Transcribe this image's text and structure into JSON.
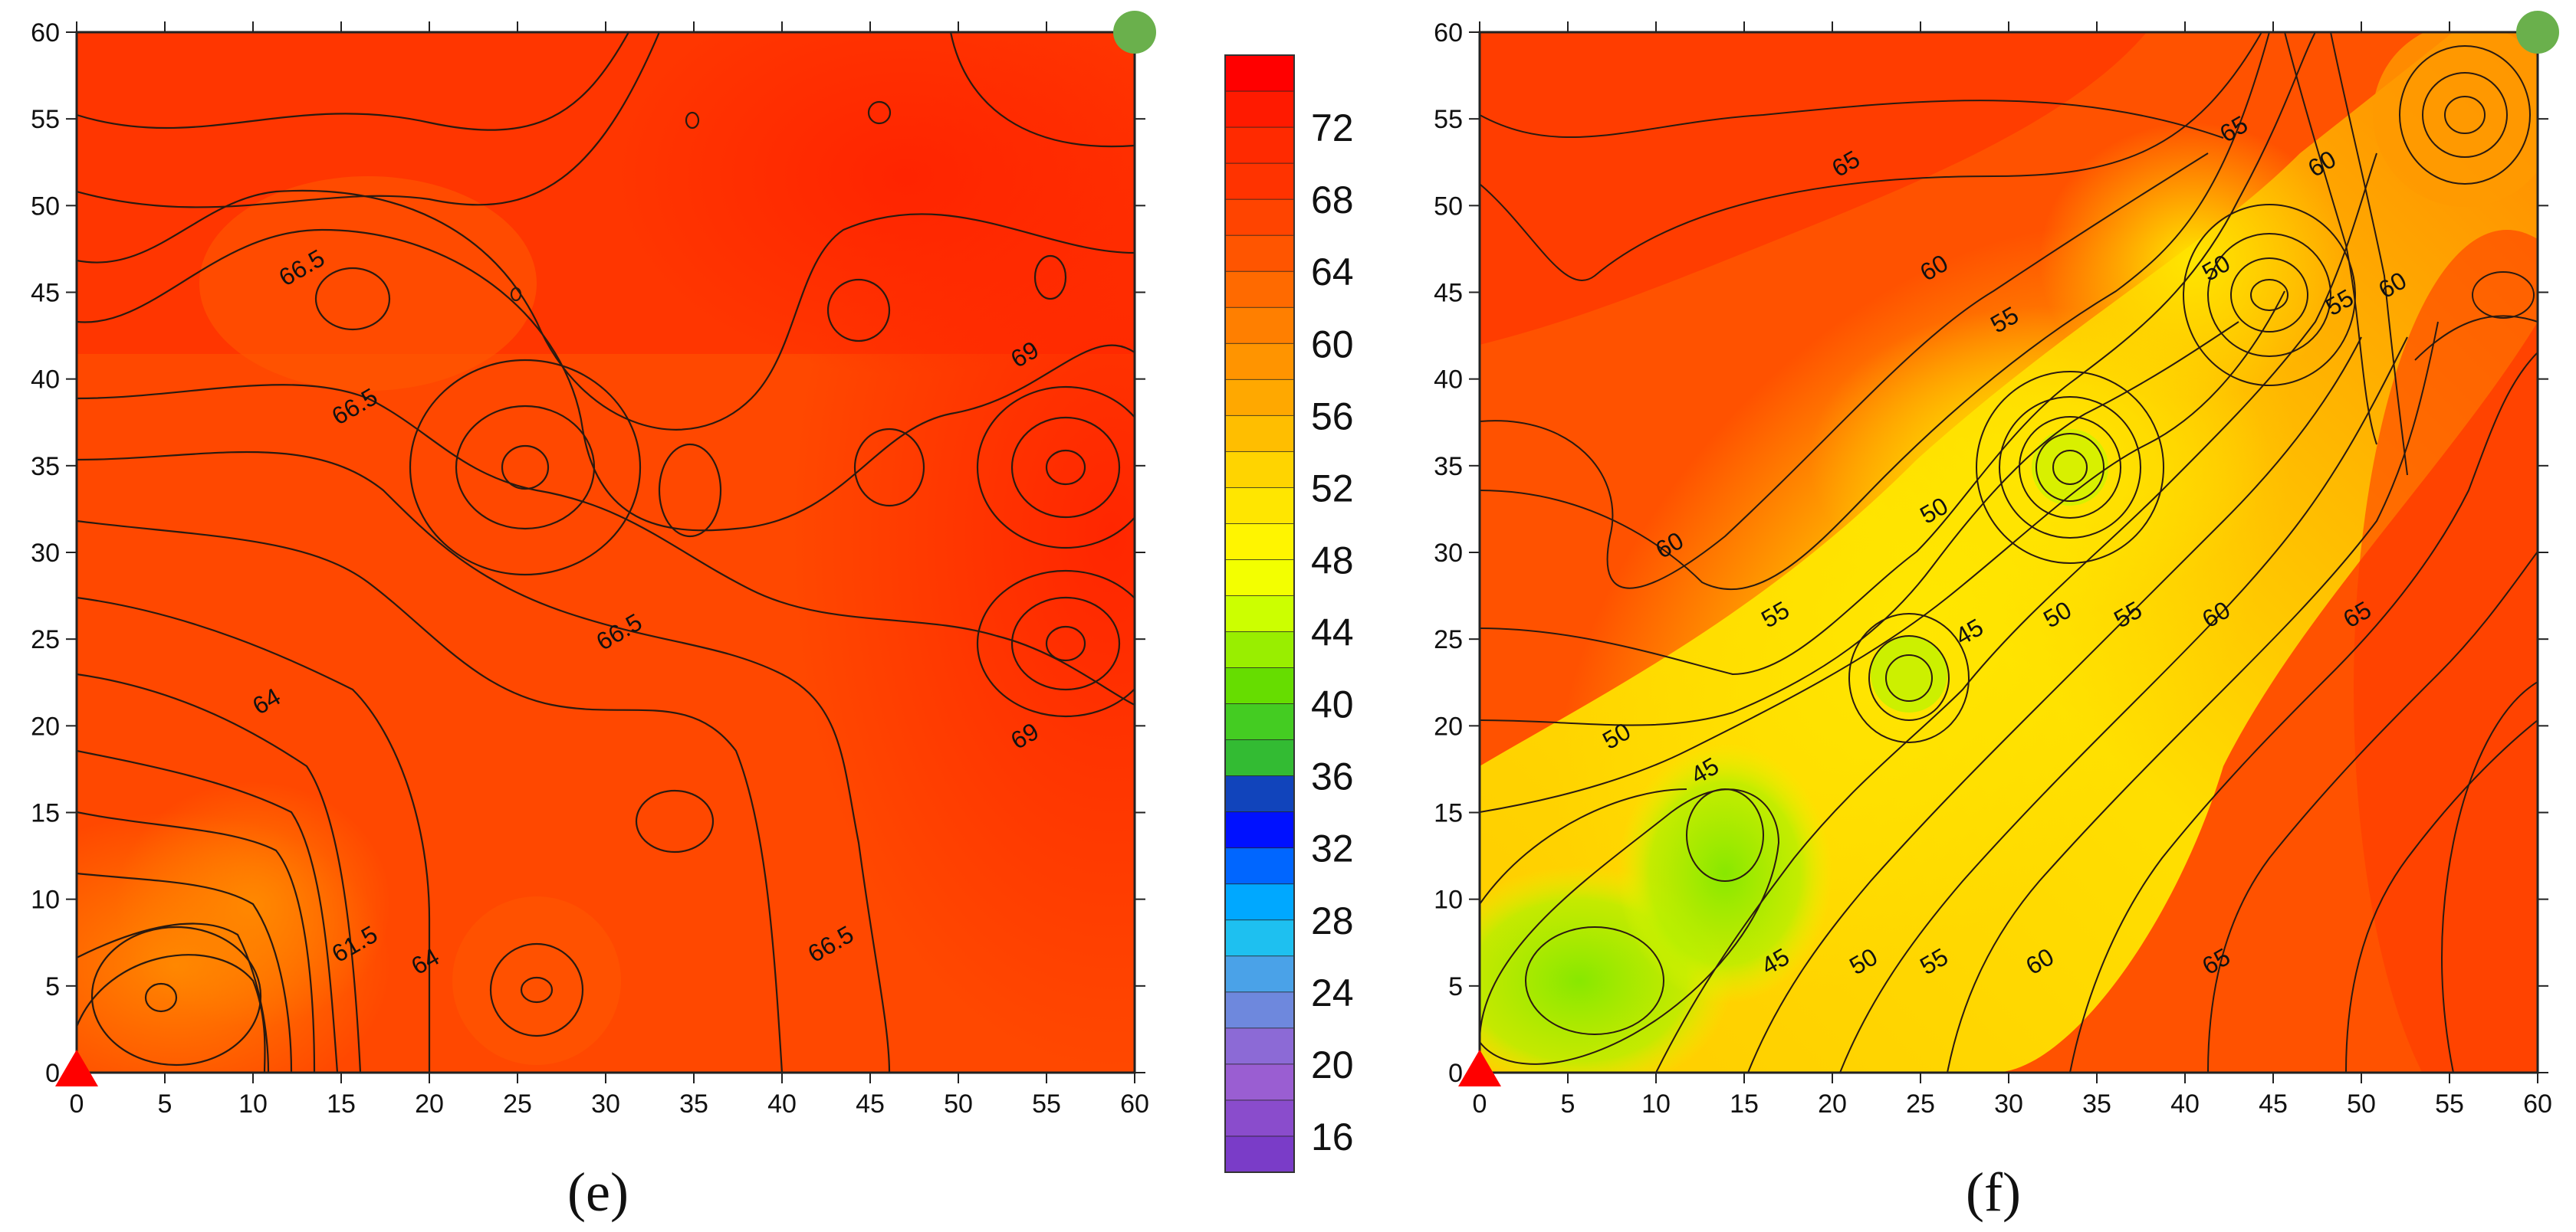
{
  "colorbar": {
    "labels": [
      "72",
      "68",
      "64",
      "60",
      "56",
      "52",
      "48",
      "44",
      "40",
      "36",
      "32",
      "28",
      "24",
      "20",
      "16"
    ],
    "label_values": [
      72,
      68,
      64,
      60,
      56,
      52,
      48,
      44,
      40,
      36,
      32,
      28,
      24,
      20,
      16
    ],
    "range": [
      14,
      76
    ],
    "colors": [
      "#ff0000",
      "#ff1a00",
      "#ff2a00",
      "#ff3300",
      "#ff4400",
      "#ff5500",
      "#ff6a00",
      "#ff7f00",
      "#ff9400",
      "#ffa800",
      "#ffbe00",
      "#ffd400",
      "#ffe600",
      "#fff500",
      "#f3ff00",
      "#ccff00",
      "#99ee00",
      "#66dd00",
      "#44cc22",
      "#33bb33",
      "#1144bb",
      "#0011ff",
      "#0066ff",
      "#00a8ff",
      "#1ec0f0",
      "#4aa2e8",
      "#6e88dd",
      "#8c6ad6",
      "#9a5ed2",
      "#8a4ccc",
      "#7a3cc8"
    ]
  },
  "panels": [
    {
      "letter": "(e)",
      "x_ticks": [
        "0",
        "5",
        "10",
        "15",
        "20",
        "25",
        "30",
        "35",
        "40",
        "45",
        "50",
        "55",
        "60"
      ],
      "y_ticks": [
        "0",
        "5",
        "10",
        "15",
        "20",
        "25",
        "30",
        "35",
        "40",
        "45",
        "50",
        "55",
        "60"
      ]
    },
    {
      "letter": "(f)",
      "x_ticks": [
        "0",
        "5",
        "10",
        "15",
        "20",
        "25",
        "30",
        "35",
        "40",
        "45",
        "50",
        "55",
        "60"
      ],
      "y_ticks": [
        "0",
        "5",
        "10",
        "15",
        "20",
        "25",
        "30",
        "35",
        "40",
        "45",
        "50",
        "55",
        "60"
      ]
    }
  ],
  "chart_data": [
    {
      "type": "heatmap",
      "subtype": "contour",
      "xlim": [
        0,
        60
      ],
      "ylim": [
        0,
        60
      ],
      "grid": false,
      "markers": [
        {
          "shape": "triangle",
          "color": "#ff0000",
          "x": 0,
          "y": 0
        },
        {
          "shape": "circle",
          "color": "#6ab04c",
          "x": 60,
          "y": 60
        }
      ],
      "contour_labels": [
        {
          "text": "66.5",
          "x": 13,
          "y": 46
        },
        {
          "text": "66.5",
          "x": 16,
          "y": 38
        },
        {
          "text": "66.5",
          "x": 31,
          "y": 25
        },
        {
          "text": "64",
          "x": 11,
          "y": 21
        },
        {
          "text": "61.5",
          "x": 16,
          "y": 7
        },
        {
          "text": "64",
          "x": 20,
          "y": 6
        },
        {
          "text": "66.5",
          "x": 43,
          "y": 7
        },
        {
          "text": "69",
          "x": 54,
          "y": 41
        },
        {
          "text": "69",
          "x": 54,
          "y": 19
        }
      ]
    },
    {
      "type": "heatmap",
      "subtype": "contour",
      "xlim": [
        0,
        60
      ],
      "ylim": [
        0,
        60
      ],
      "grid": false,
      "markers": [
        {
          "shape": "triangle",
          "color": "#ff0000",
          "x": 0,
          "y": 0
        },
        {
          "shape": "circle",
          "color": "#6ab04c",
          "x": 60,
          "y": 60
        }
      ],
      "contour_labels": [
        {
          "text": "65",
          "x": 43,
          "y": 54
        },
        {
          "text": "60",
          "x": 48,
          "y": 52
        },
        {
          "text": "65",
          "x": 21,
          "y": 52
        },
        {
          "text": "60",
          "x": 26,
          "y": 46
        },
        {
          "text": "50",
          "x": 42,
          "y": 46
        },
        {
          "text": "55",
          "x": 49,
          "y": 44
        },
        {
          "text": "60",
          "x": 52,
          "y": 45
        },
        {
          "text": "55",
          "x": 30,
          "y": 43
        },
        {
          "text": "50",
          "x": 26,
          "y": 32
        },
        {
          "text": "60",
          "x": 11,
          "y": 30
        },
        {
          "text": "55",
          "x": 17,
          "y": 26
        },
        {
          "text": "45",
          "x": 28,
          "y": 25
        },
        {
          "text": "50",
          "x": 33,
          "y": 26
        },
        {
          "text": "55",
          "x": 37,
          "y": 26
        },
        {
          "text": "60",
          "x": 42,
          "y": 26
        },
        {
          "text": "65",
          "x": 50,
          "y": 26
        },
        {
          "text": "50",
          "x": 8,
          "y": 19
        },
        {
          "text": "45",
          "x": 13,
          "y": 17
        },
        {
          "text": "45",
          "x": 17,
          "y": 6
        },
        {
          "text": "50",
          "x": 22,
          "y": 6
        },
        {
          "text": "55",
          "x": 26,
          "y": 6
        },
        {
          "text": "60",
          "x": 32,
          "y": 6
        },
        {
          "text": "65",
          "x": 42,
          "y": 6
        }
      ]
    }
  ]
}
